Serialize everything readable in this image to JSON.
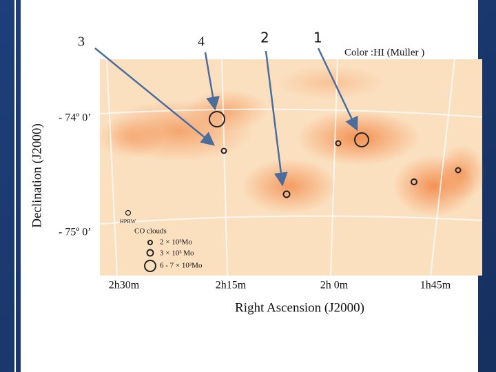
{
  "labels": {
    "pointer_3": "3",
    "pointer_4": "4",
    "pointer_2": "2",
    "pointer_1": "1",
    "caption": "Color :HI (Muller )"
  },
  "map": {
    "y_axis_title": "Declination (J2000)",
    "y_ticks": [
      "- 74º 0’",
      "- 75º 0’"
    ],
    "x_axis_title": "Right Ascension (J2000)",
    "x_ticks": [
      "2h30m",
      "2h15m",
      "2h 0m",
      "1h45m"
    ],
    "legend": {
      "beam": "HPBW",
      "title": "CO clouds",
      "items": [
        "2 × 10³Mo",
        "3 × 10³ Mo",
        "6 - 7 × 10³Mo"
      ]
    }
  }
}
